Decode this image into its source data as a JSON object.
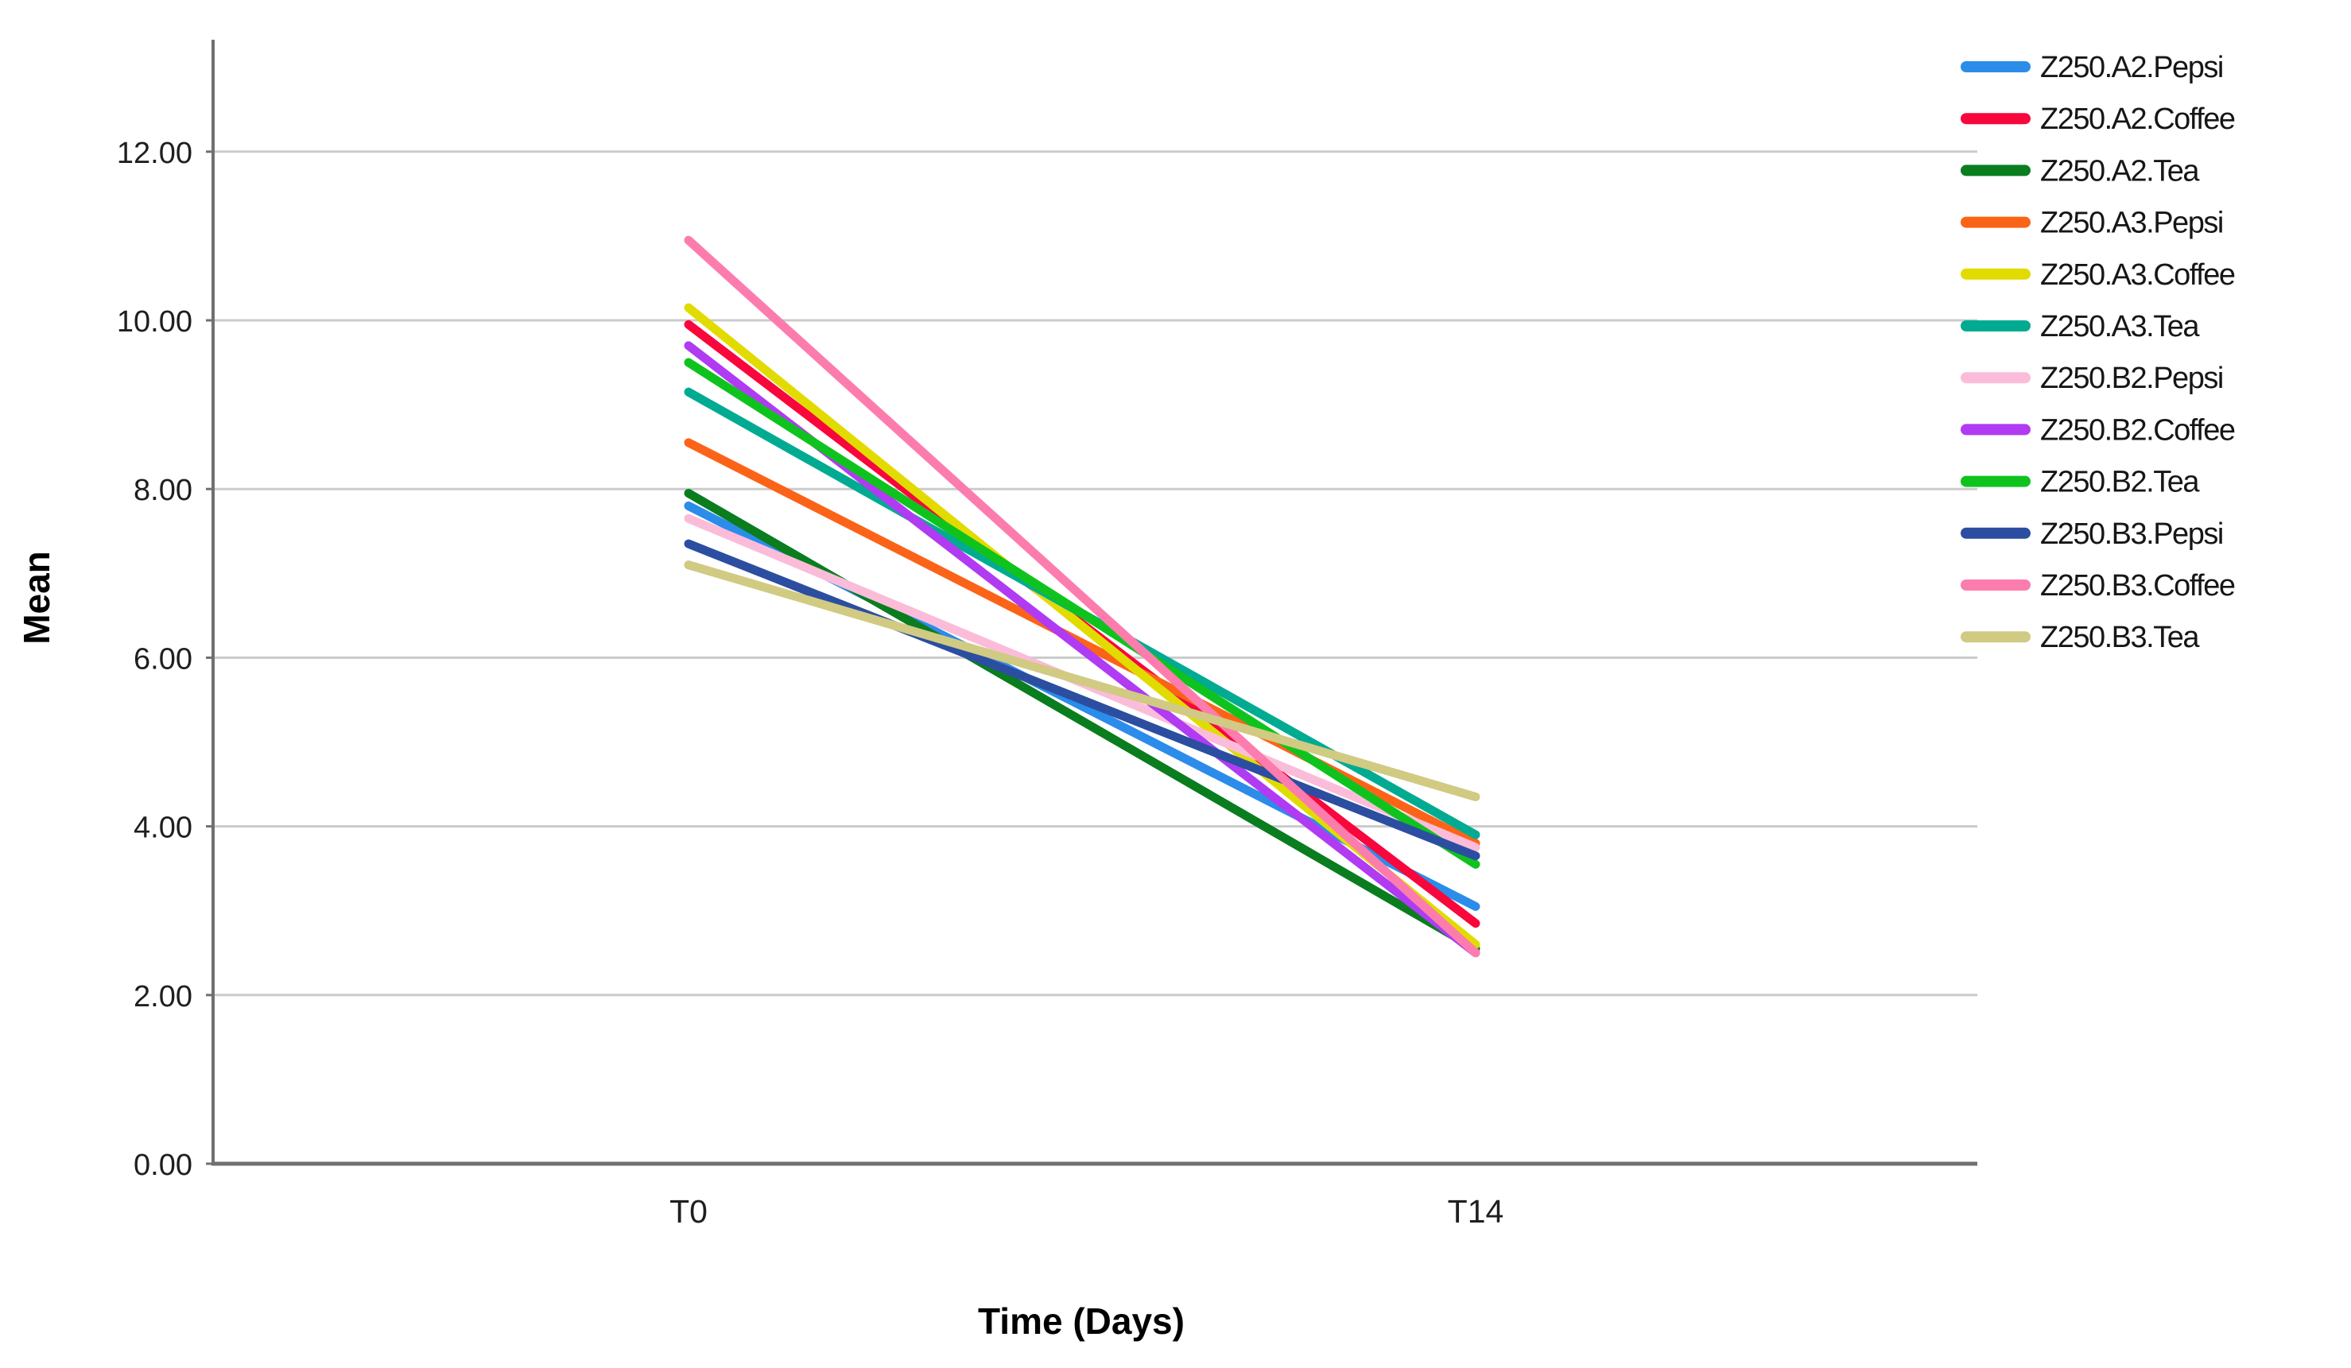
{
  "chart": {
    "y_axis": {
      "title": "Mean",
      "tick_labels": [
        "0.00",
        "2.00",
        "4.00",
        "6.00",
        "8.00",
        "10.00",
        "12.00"
      ],
      "tick_values": [
        0,
        2,
        4,
        6,
        8,
        10,
        12
      ]
    },
    "x_axis": {
      "title": "Time (Days)",
      "categories": [
        "T0",
        "T14"
      ]
    },
    "colors": {
      "gridline": "#CBCBCB",
      "axis_line": "#707070",
      "text": "#1f1f1f"
    }
  },
  "chart_data": {
    "type": "line",
    "title": "",
    "xlabel": "Time (Days)",
    "ylabel": "Mean",
    "categories": [
      "T0",
      "T14"
    ],
    "ylim": [
      0,
      13.3
    ],
    "grid": "horizontal-only",
    "legend_position": "right",
    "series": [
      {
        "name": "Z250.A2.Pepsi",
        "color": "#2B8CEA",
        "values": [
          7.8,
          3.05
        ]
      },
      {
        "name": "Z250.A2.Coffee",
        "color": "#F8073C",
        "values": [
          9.95,
          2.85
        ]
      },
      {
        "name": "Z250.A2.Tea",
        "color": "#0A7D1F",
        "values": [
          7.95,
          2.55
        ]
      },
      {
        "name": "Z250.A3.Pepsi",
        "color": "#FB6418",
        "values": [
          8.55,
          3.8
        ]
      },
      {
        "name": "Z250.A3.Coffee",
        "color": "#E2DB00",
        "values": [
          10.15,
          2.6
        ]
      },
      {
        "name": "Z250.A3.Tea",
        "color": "#00AB92",
        "values": [
          9.15,
          3.9
        ]
      },
      {
        "name": "Z250.B2.Pepsi",
        "color": "#FBBCDA",
        "values": [
          7.65,
          3.75
        ]
      },
      {
        "name": "Z250.B2.Coffee",
        "color": "#B03BF2",
        "values": [
          9.7,
          2.5
        ]
      },
      {
        "name": "Z250.B2.Tea",
        "color": "#0FC31E",
        "values": [
          9.5,
          3.55
        ]
      },
      {
        "name": "Z250.B3.Pepsi",
        "color": "#2C4EA1",
        "values": [
          7.35,
          3.65
        ]
      },
      {
        "name": "Z250.B3.Coffee",
        "color": "#FD7CAE",
        "values": [
          10.95,
          2.5
        ]
      },
      {
        "name": "Z250.B3.Tea",
        "color": "#D1CA82",
        "values": [
          7.1,
          4.35
        ]
      }
    ]
  }
}
